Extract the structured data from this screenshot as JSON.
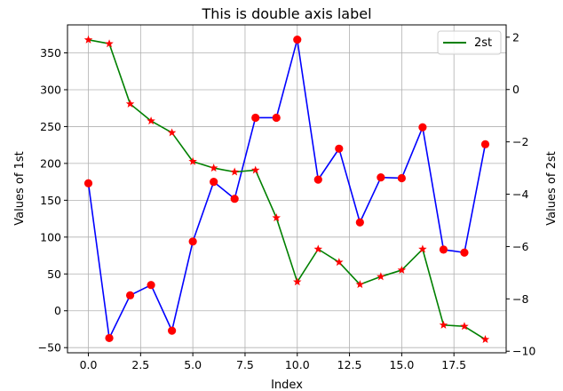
{
  "chart_data": {
    "type": "line",
    "title": "This is double axis label",
    "xlabel": "Index",
    "ylabel": "Values of 1st",
    "y2label": "Values of 2st",
    "xlim": [
      -1,
      20
    ],
    "ylim": [
      -57,
      388
    ],
    "y2lim": [
      -10.06,
      2.47
    ],
    "x_ticks": [
      0,
      2.5,
      5,
      7.5,
      10,
      12.5,
      15,
      17.5
    ],
    "x_tick_labels": [
      "0.0",
      "2.5",
      "5.0",
      "7.5",
      "10.0",
      "12.5",
      "15.0",
      "17.5"
    ],
    "y_ticks": [
      -50,
      0,
      50,
      100,
      150,
      200,
      250,
      300,
      350
    ],
    "y_tick_labels": [
      "−50",
      "0",
      "50",
      "100",
      "150",
      "200",
      "250",
      "300",
      "350"
    ],
    "y2_ticks": [
      -10,
      -8,
      -6,
      -4,
      -2,
      0,
      2
    ],
    "y2_tick_labels": [
      "−10",
      "−8",
      "−6",
      "−4",
      "−2",
      "0",
      "2"
    ],
    "grid": true,
    "legend_position": "top-right",
    "x": [
      0,
      1,
      2,
      3,
      4,
      5,
      6,
      7,
      8,
      9,
      10,
      11,
      12,
      13,
      14,
      15,
      16,
      17,
      18,
      19
    ],
    "series": [
      {
        "axis": "left",
        "line_color": "#0000ff",
        "marker": "circle",
        "marker_color": "#ff0000",
        "values": [
          173,
          -37,
          21,
          35,
          -27,
          94,
          175,
          152,
          262,
          262,
          368,
          178,
          220,
          120,
          181,
          180,
          249,
          83,
          79,
          226
        ]
      },
      {
        "axis": "right",
        "name": "2st",
        "line_color": "#008000",
        "marker": "star",
        "marker_color": "#ff0000",
        "values": [
          1.9,
          1.75,
          -0.55,
          -1.2,
          -1.65,
          -2.75,
          -3.0,
          -3.15,
          -3.08,
          -4.9,
          -7.35,
          -6.1,
          -6.6,
          -7.45,
          -7.15,
          -6.9,
          -6.1,
          -9.0,
          -9.05,
          -9.55
        ]
      }
    ]
  }
}
